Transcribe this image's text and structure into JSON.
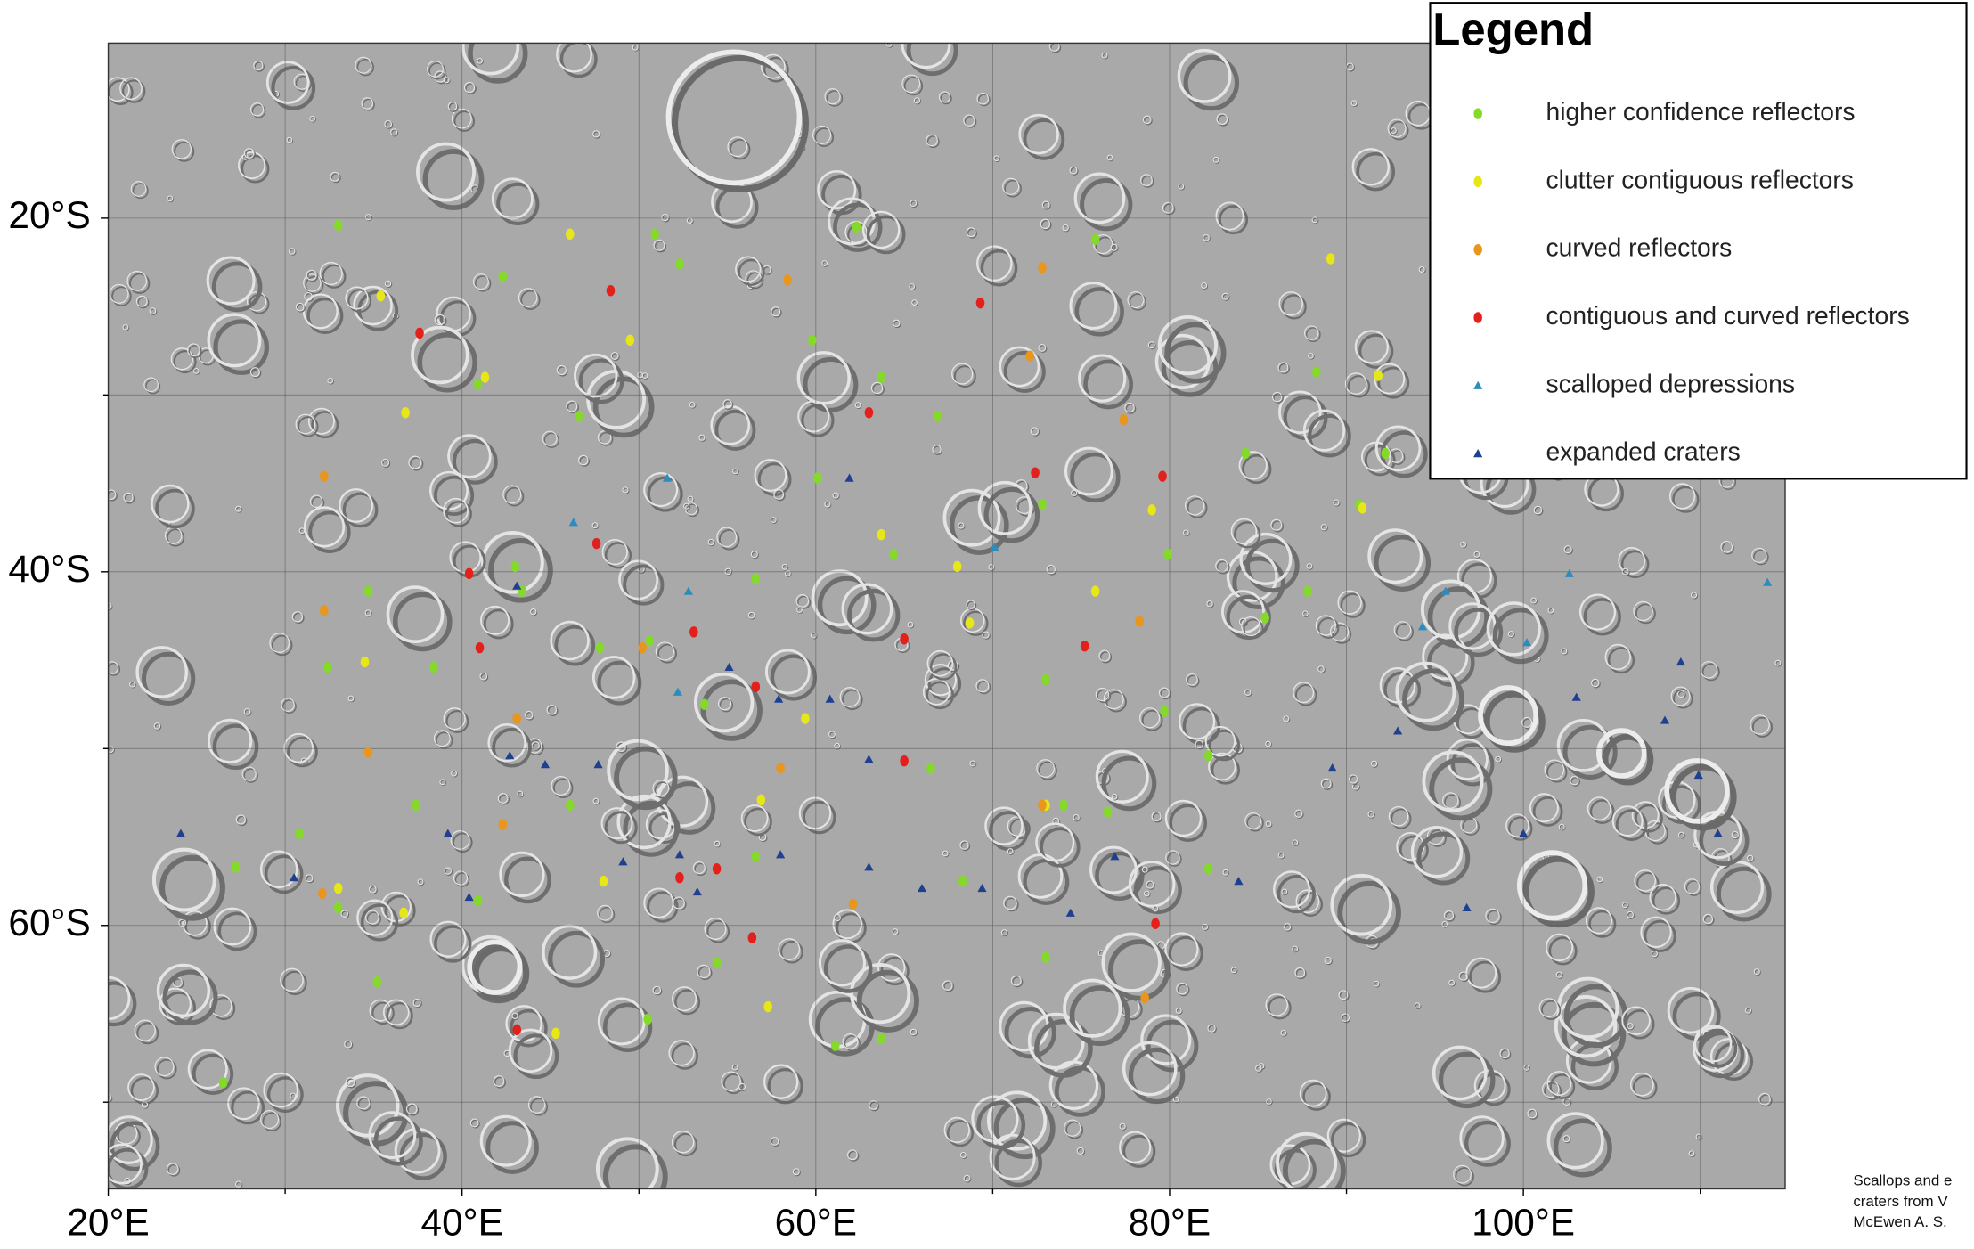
{
  "chart_data": {
    "type": "scatter",
    "xlim": [
      20,
      114.8
    ],
    "ylim": [
      -74.9,
      -10.1
    ],
    "xticks": [
      {
        "value": 20,
        "label": "20°E"
      },
      {
        "value": 40,
        "label": "40°E"
      },
      {
        "value": 60,
        "label": "60°E"
      },
      {
        "value": 80,
        "label": "80°E"
      },
      {
        "value": 100,
        "label": "100°E"
      }
    ],
    "yticks": [
      {
        "value": -20,
        "label": "20°S"
      },
      {
        "value": -40,
        "label": "40°S"
      },
      {
        "value": -60,
        "label": "60°S"
      }
    ],
    "minor_xticks": [
      30,
      50,
      70,
      90,
      110
    ],
    "minor_yticks": [
      -30,
      -50,
      -70
    ],
    "grid": true,
    "legend_title": "Legend",
    "legend_position": "upper right",
    "note_lines": [
      "Scallops and e",
      "craters from V",
      "McEwen A. S."
    ],
    "series": [
      {
        "name": "higher confidence reflectors",
        "color": "#84d92a",
        "marker": "dot",
        "x": [
          27.2,
          30.8,
          33.0,
          32.4,
          34.7,
          38.4,
          40.9,
          43.0,
          43.4,
          47.8,
          50.6,
          46.1,
          52.3,
          53.7,
          59.8,
          63.7,
          66.9,
          72.8,
          73.0,
          74.0,
          76.5,
          82.2,
          87.8,
          90.7,
          92.2,
          88.3,
          75.8,
          62.3,
          50.9,
          42.3,
          33.0,
          26.5,
          61.1,
          63.7,
          54.4,
          56.6,
          68.3,
          73.0,
          66.5,
          56.6,
          79.7,
          82.2,
          79.9,
          84.3,
          85.4,
          37.4,
          40.9,
          35.2,
          50.5,
          64.4,
          60.1,
          46.6
        ],
        "y": [
          -56.7,
          -54.8,
          -59.0,
          -45.4,
          -41.1,
          -45.4,
          -29.4,
          -39.7,
          -41.1,
          -44.3,
          -43.9,
          -53.2,
          -22.6,
          -47.5,
          -26.9,
          -29.0,
          -31.2,
          -36.2,
          -46.1,
          -53.2,
          -53.6,
          -56.8,
          -41.1,
          -36.2,
          -33.3,
          -28.7,
          -21.2,
          -20.5,
          -20.9,
          -23.3,
          -20.4,
          -68.9,
          -66.8,
          -66.4,
          -62.1,
          -56.1,
          -57.5,
          -61.8,
          -51.1,
          -40.4,
          -47.9,
          -50.4,
          -39.0,
          -33.3,
          -42.6,
          -53.2,
          -58.6,
          -63.2,
          -65.3,
          -39.0,
          -34.7,
          -31.2
        ]
      },
      {
        "name": "clutter contiguous reflectors",
        "color": "#e6e619",
        "marker": "dot",
        "x": [
          35.4,
          36.8,
          34.5,
          33.0,
          41.3,
          46.1,
          49.5,
          56.9,
          57.3,
          68.0,
          68.7,
          79.0,
          89.1,
          90.9,
          91.8,
          59.4,
          45.3,
          48.0,
          63.7,
          75.8,
          73.0,
          36.7
        ],
        "y": [
          -24.4,
          -31.0,
          -45.1,
          -57.9,
          -29.0,
          -20.9,
          -26.9,
          -52.9,
          -64.6,
          -39.7,
          -42.9,
          -36.5,
          -22.3,
          -36.4,
          -28.9,
          -48.3,
          -66.1,
          -57.5,
          -37.9,
          -41.1,
          -53.2,
          -59.3
        ]
      },
      {
        "name": "curved reflectors",
        "color": "#e8961e",
        "marker": "dot",
        "x": [
          32.2,
          32.1,
          34.7,
          42.3,
          43.1,
          58.4,
          58.0,
          62.1,
          72.8,
          72.8,
          77.4,
          78.3,
          78.6,
          50.2,
          72.1,
          32.2
        ],
        "y": [
          -42.2,
          -58.2,
          -50.2,
          -54.3,
          -48.3,
          -23.5,
          -51.1,
          -58.8,
          -53.2,
          -22.8,
          -31.4,
          -42.8,
          -64.1,
          -44.3,
          -27.8,
          -34.6
        ]
      },
      {
        "name": "contiguous and curved reflectors",
        "color": "#e3201b",
        "marker": "dot",
        "x": [
          37.6,
          40.4,
          41.0,
          43.1,
          48.4,
          47.6,
          53.1,
          56.4,
          56.6,
          63.0,
          65.0,
          65.0,
          69.3,
          72.4,
          75.2,
          79.2,
          79.6,
          52.3,
          54.4
        ],
        "y": [
          -26.5,
          -40.1,
          -44.3,
          -65.9,
          -24.1,
          -38.4,
          -43.4,
          -60.7,
          -46.5,
          -31.0,
          -50.7,
          -43.8,
          -24.8,
          -34.4,
          -44.2,
          -59.9,
          -34.6,
          -57.3,
          -56.8
        ]
      },
      {
        "name": "scalloped depressions",
        "color": "#2b8cbe",
        "marker": "triangle",
        "x": [
          95.6,
          94.3,
          102.6,
          113.8,
          100.2,
          52.8,
          52.2,
          70.1,
          51.6,
          46.3
        ],
        "y": [
          -41.1,
          -43.1,
          -40.1,
          -40.6,
          -44.0,
          -41.1,
          -46.8,
          -38.6,
          -34.7,
          -37.2
        ]
      },
      {
        "name": "expanded craters",
        "color": "#1f3f8f",
        "marker": "triangle",
        "x": [
          24.1,
          30.5,
          39.2,
          40.4,
          42.7,
          44.7,
          47.7,
          49.1,
          52.3,
          53.3,
          58.0,
          63.0,
          63.0,
          66.0,
          69.4,
          74.4,
          76.9,
          83.9,
          89.2,
          92.9,
          96.8,
          100.0,
          103.0,
          108.0,
          109.9,
          111.0,
          108.9,
          55.1,
          57.9,
          60.8,
          61.9,
          43.1
        ],
        "y": [
          -54.8,
          -57.3,
          -54.8,
          -58.4,
          -50.4,
          -50.9,
          -50.9,
          -56.4,
          -56.0,
          -58.1,
          -56.0,
          -50.6,
          -56.7,
          -57.9,
          -57.9,
          -59.3,
          -56.1,
          -57.5,
          -51.1,
          -49.0,
          -59.0,
          -54.8,
          -47.1,
          -48.4,
          -51.5,
          -54.8,
          -45.1,
          -45.4,
          -47.2,
          -47.2,
          -34.7,
          -40.8
        ]
      }
    ]
  }
}
